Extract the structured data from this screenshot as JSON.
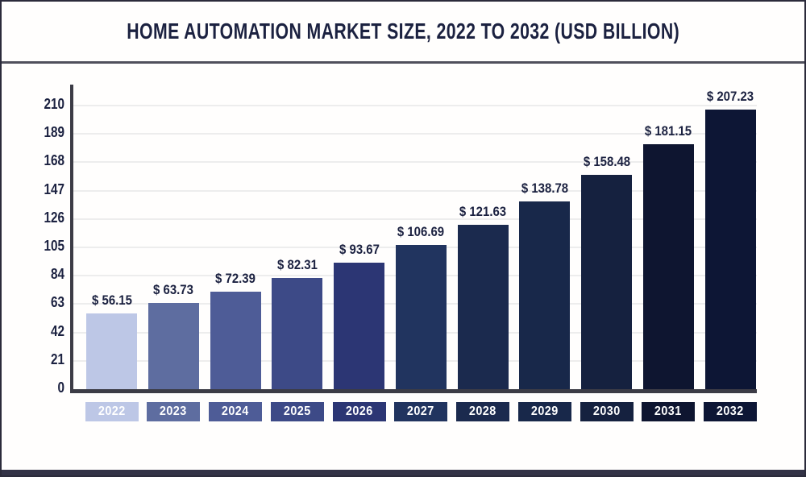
{
  "title": "HOME AUTOMATION MARKET SIZE, 2022 TO 2032 (USD BILLION)",
  "chart_data": {
    "type": "bar",
    "title": "HOME AUTOMATION MARKET SIZE, 2022 TO 2032 (USD BILLION)",
    "categories": [
      "2022",
      "2023",
      "2024",
      "2025",
      "2026",
      "2027",
      "2028",
      "2029",
      "2030",
      "2031",
      "2032"
    ],
    "values": [
      56.15,
      63.73,
      72.39,
      82.31,
      93.67,
      106.69,
      121.63,
      138.78,
      158.48,
      181.15,
      207.23
    ],
    "value_labels": [
      "$ 56.15",
      "$ 63.73",
      "$ 72.39",
      "$ 82.31",
      "$ 93.67",
      "$ 106.69",
      "$ 121.63",
      "$ 138.78",
      "$ 158.48",
      "$ 181.15",
      "$ 207.23"
    ],
    "yticks": [
      0,
      21,
      42,
      63,
      84,
      105,
      126,
      147,
      168,
      189,
      210
    ],
    "ylim": [
      0,
      210
    ],
    "grid": "horizontal",
    "legend": "none",
    "bar_colors": [
      "#bdc7e6",
      "#5e6da0",
      "#4e5c97",
      "#3d4a87",
      "#2c3674",
      "#21345f",
      "#1b2a4e",
      "#18284a",
      "#15213f",
      "#0e1530",
      "#0d1635"
    ]
  },
  "colors": {
    "title_text": "#1b2140",
    "value_label_text": "#1b2140",
    "year_label_text": "#ffffff",
    "axis_line": "#3c3c46",
    "divider": "#50505c",
    "gridline": "#ededed",
    "frame_border": "#2b2b3b",
    "bottom_strip": "#333347",
    "background": "#fffefd"
  }
}
